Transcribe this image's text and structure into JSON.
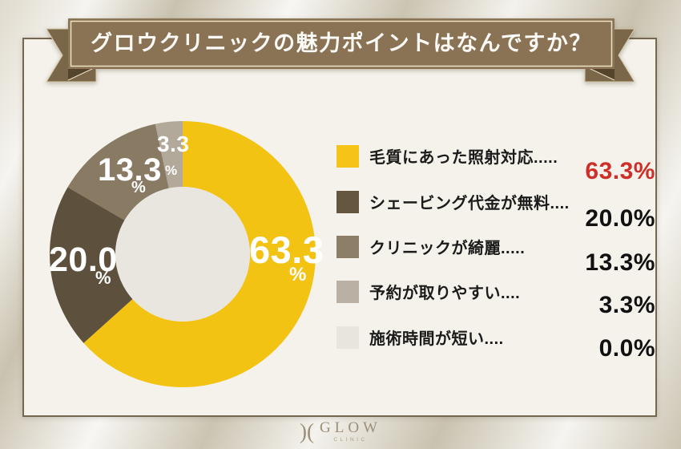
{
  "header": {
    "title": "グロウクリニックの魅力ポイントはなんですか？"
  },
  "chart_data": {
    "type": "pie",
    "subtype": "donut",
    "title": "グロウクリニックの魅力ポイントはなんですか？",
    "categories": [
      "毛質にあった照射対応",
      "シェービング代金が無料",
      "クリニックが綺麗",
      "予約が取りやすい",
      "施術時間が短い"
    ],
    "values": [
      63.3,
      20.0,
      13.3,
      3.3,
      0.0
    ],
    "unit": "%",
    "colors": [
      "#F3C313",
      "#5D503C",
      "#897A64",
      "#B2A99B",
      "#E7E4DC"
    ],
    "slice_display": [
      "63.3",
      "20.0",
      "13.3",
      "3.3"
    ],
    "percent_sign": "%",
    "start_angle_deg": 0,
    "direction": "clockwise",
    "legend_position": "right",
    "hole_color": "#E9E6DF"
  },
  "legend": {
    "items": [
      {
        "label": "毛質にあった照射対応.....",
        "value": "63.3%",
        "color": "#F5C417",
        "value_color": "#CE2F28"
      },
      {
        "label": "シェービング代金が無料....",
        "value": "20.0%",
        "color": "#65573F",
        "value_color": "#111111"
      },
      {
        "label": "クリニックが綺麗.....",
        "value": "13.3%",
        "color": "#8D7E68",
        "value_color": "#111111"
      },
      {
        "label": "予約が取りやすい....",
        "value": "3.3%",
        "color": "#BAB0A3",
        "value_color": "#111111"
      },
      {
        "label": "施術時間が短い....",
        "value": "0.0%",
        "color": "#E8E5DD",
        "value_color": "#111111"
      }
    ]
  },
  "footer": {
    "logo_mark": ")(",
    "logo_text": "GLOW",
    "logo_subtext": "CLINIC"
  },
  "style_colors": {
    "ribbon_band": "#8A7355",
    "ribbon_tail": "#7A6648",
    "ribbon_fold": "#55452D",
    "ribbon_trim": "#EDE1C4",
    "card_bg": "#F4F2EB",
    "accent_red": "#CE2F28"
  }
}
